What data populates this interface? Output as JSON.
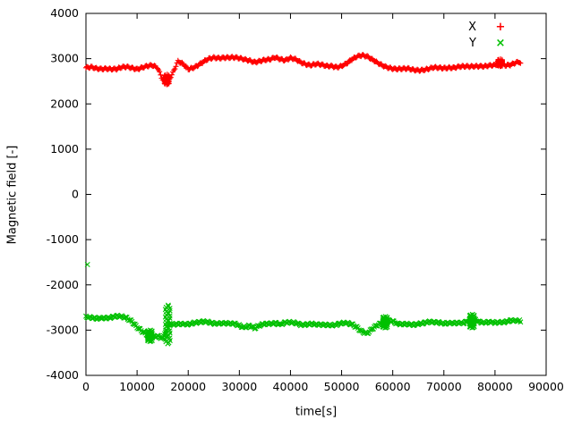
{
  "chart_data": {
    "type": "scatter",
    "title": "",
    "xlabel": "time[s]",
    "ylabel": "Magnetic field [-]",
    "xlim": [
      0,
      90000
    ],
    "ylim": [
      -4000,
      4000
    ],
    "x_ticks": [
      0,
      10000,
      20000,
      30000,
      40000,
      50000,
      60000,
      70000,
      80000,
      90000
    ],
    "y_ticks": [
      -4000,
      -3000,
      -2000,
      -1000,
      0,
      1000,
      2000,
      3000,
      4000
    ],
    "grid": false,
    "legend_position": "top-right",
    "x": [
      0,
      1000,
      2000,
      3000,
      4000,
      5000,
      6000,
      7000,
      8000,
      9000,
      10000,
      11000,
      12000,
      13000,
      14000,
      15000,
      16000,
      17000,
      18000,
      19000,
      20000,
      21000,
      22000,
      23000,
      24000,
      25000,
      26000,
      27000,
      28000,
      29000,
      30000,
      31000,
      32000,
      33000,
      34000,
      35000,
      36000,
      37000,
      38000,
      39000,
      40000,
      41000,
      42000,
      43000,
      44000,
      45000,
      46000,
      47000,
      48000,
      49000,
      50000,
      51000,
      52000,
      53000,
      54000,
      55000,
      56000,
      57000,
      58000,
      59000,
      60000,
      61000,
      62000,
      63000,
      64000,
      65000,
      66000,
      67000,
      68000,
      69000,
      70000,
      71000,
      72000,
      73000,
      74000,
      75000,
      76000,
      77000,
      78000,
      79000,
      80000,
      81000,
      82000,
      83000,
      84000,
      85000
    ],
    "series": [
      {
        "name": "X",
        "color": "#ff0000",
        "marker": "+",
        "values": [
          2800,
          2810,
          2790,
          2800,
          2820,
          2800,
          2780,
          2800,
          2810,
          2790,
          2760,
          2780,
          2800,
          2820,
          2790,
          2550,
          2500,
          2700,
          2950,
          2900,
          2800,
          2830,
          2870,
          2920,
          2970,
          3000,
          3000,
          3010,
          3000,
          3000,
          3000,
          3000,
          2990,
          2950,
          2960,
          2980,
          3000,
          3050,
          3000,
          2950,
          2980,
          2950,
          2900,
          2870,
          2850,
          2870,
          2860,
          2850,
          2870,
          2850,
          2860,
          2900,
          2980,
          3050,
          3080,
          3040,
          2950,
          2870,
          2820,
          2800,
          2790,
          2780,
          2780,
          2790,
          2780,
          2780,
          2780,
          2780,
          2790,
          2780,
          2780,
          2790,
          2780,
          2790,
          2800,
          2820,
          2850,
          2860,
          2850,
          2860,
          2870,
          2920,
          2880,
          2870,
          2890,
          2900
        ]
      },
      {
        "name": "Y",
        "color": "#00c000",
        "marker": "×",
        "values": [
          -2700,
          -2710,
          -2720,
          -2700,
          -2720,
          -2730,
          -2720,
          -2730,
          -2750,
          -2820,
          -2950,
          -3050,
          -3120,
          -3150,
          -3100,
          -3150,
          -2850,
          -2870,
          -2860,
          -2850,
          -2860,
          -2850,
          -2860,
          -2850,
          -2850,
          -2860,
          -2850,
          -2850,
          -2860,
          -2850,
          -2870,
          -2900,
          -2870,
          -2950,
          -2900,
          -2870,
          -2860,
          -2850,
          -2900,
          -2870,
          -2860,
          -2850,
          -2870,
          -2860,
          -2850,
          -2870,
          -2860,
          -2850,
          -2860,
          -2870,
          -2860,
          -2870,
          -2890,
          -2950,
          -3050,
          -3100,
          -3000,
          -2900,
          -2820,
          -2750,
          -2780,
          -2850,
          -2860,
          -2850,
          -2860,
          -2850,
          -2860,
          -2850,
          -2860,
          -2850,
          -2860,
          -2850,
          -2860,
          -2850,
          -2830,
          -2740,
          -2720,
          -2800,
          -2830,
          -2820,
          -2830,
          -2820,
          -2830,
          -2820,
          -2830,
          -2820
        ]
      }
    ],
    "noise_clusters": [
      {
        "series": "X",
        "x": 15800,
        "y_min": 2430,
        "y_max": 2650
      },
      {
        "series": "X",
        "x": 81000,
        "y_min": 2830,
        "y_max": 2990
      },
      {
        "series": "Y",
        "x": 12500,
        "y_min": -3250,
        "y_max": -3000
      },
      {
        "series": "Y",
        "x": 16000,
        "y_min": -3300,
        "y_max": -2450
      },
      {
        "series": "Y",
        "x": 58500,
        "y_min": -2950,
        "y_max": -2700
      },
      {
        "series": "Y",
        "x": 75500,
        "y_min": -2950,
        "y_max": -2650
      }
    ],
    "outliers": [
      {
        "series": "Y",
        "x": 300,
        "y": -1550
      }
    ]
  }
}
